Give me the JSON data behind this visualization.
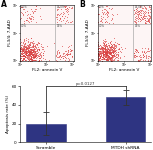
{
  "bar_categories": [
    "Scramble",
    "MTDH shRNA"
  ],
  "bar_values": [
    20,
    48
  ],
  "bar_errors": [
    12,
    8
  ],
  "bar_color": "#2e3482",
  "ylabel": "Apoptosis rate (%)",
  "ylim": [
    0,
    60
  ],
  "yticks": [
    0,
    20,
    40,
    60
  ],
  "pvalue_text": "p=0.0127",
  "scatter_xlabel": "FL2: annexin V",
  "scatter_ylabel_A": "FL3/4: 7-AAD",
  "scatter_ylabel_B": "FL3/4: 7-AAD",
  "bg_color": "#ffffff",
  "dot_color": "#d94040",
  "quadrant_line_color": "#888888",
  "quad_pct_A": [
    "0.0%",
    "15.0%",
    "70.0%",
    "15.0%"
  ],
  "quad_pct_B": [
    "0.0%",
    "25.0%",
    "50.0%",
    "25.0%"
  ]
}
